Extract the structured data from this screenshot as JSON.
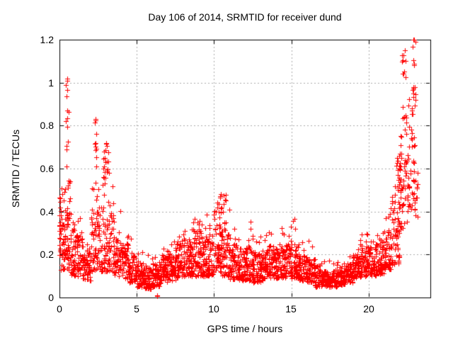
{
  "colors": {
    "marker": "#ff0000",
    "grid": "#aaaaaa",
    "frame": "#000000",
    "background": "#ffffff",
    "text": "#000000"
  },
  "chart_data": {
    "type": "scatter",
    "title": "Day 106 of 2014, SRMTID for receiver dund",
    "xlabel": "GPS time / hours",
    "ylabel": "SRMTID / TECUs",
    "xlim": [
      0,
      24
    ],
    "ylim": [
      0,
      1.2
    ],
    "xticks": [
      "0",
      "5",
      "10",
      "15",
      "20"
    ],
    "xtick_values": [
      0,
      5,
      10,
      15,
      20
    ],
    "yticks": [
      "0",
      "0.2",
      "0.4",
      "0.6",
      "0.8",
      "1",
      "1.2"
    ],
    "ytick_values": [
      0,
      0.2,
      0.4,
      0.6,
      0.8,
      1,
      1.2
    ],
    "grid": true,
    "legend": false,
    "marker": "plus",
    "marker_size_px": 7,
    "series_name": "SRMTID",
    "distribution_bins": [
      [
        0.0,
        0.1,
        0.18,
        0.45,
        18,
        0.5,
        2
      ],
      [
        0.1,
        0.5,
        0.13,
        0.42,
        45,
        0.55,
        6
      ],
      [
        0.5,
        0.75,
        0.12,
        0.4,
        30,
        0.55,
        8
      ],
      [
        0.75,
        1.0,
        0.1,
        0.32,
        28,
        0.4,
        2
      ],
      [
        1.0,
        1.5,
        0.1,
        0.3,
        52,
        0.38,
        3
      ],
      [
        1.5,
        2.0,
        0.08,
        0.22,
        55,
        0.3,
        2
      ],
      [
        2.0,
        2.5,
        0.12,
        0.45,
        50,
        0.55,
        4
      ],
      [
        2.5,
        3.0,
        0.12,
        0.45,
        50,
        0.58,
        5
      ],
      [
        3.0,
        3.5,
        0.12,
        0.42,
        50,
        0.55,
        4
      ],
      [
        3.5,
        4.0,
        0.1,
        0.3,
        50,
        0.42,
        3
      ],
      [
        4.0,
        4.5,
        0.08,
        0.25,
        55,
        0.3,
        2
      ],
      [
        4.5,
        5.0,
        0.07,
        0.2,
        55,
        0.28,
        2
      ],
      [
        5.0,
        5.5,
        0.05,
        0.17,
        55,
        0.22,
        2
      ],
      [
        5.5,
        6.0,
        0.04,
        0.15,
        55,
        0.2,
        2
      ],
      [
        6.0,
        6.5,
        0.05,
        0.16,
        55,
        0.2,
        2
      ],
      [
        6.5,
        7.0,
        0.07,
        0.2,
        55,
        0.26,
        2
      ],
      [
        7.0,
        7.5,
        0.08,
        0.22,
        55,
        0.28,
        2
      ],
      [
        7.5,
        8.0,
        0.09,
        0.25,
        55,
        0.3,
        3
      ],
      [
        8.0,
        8.5,
        0.1,
        0.27,
        55,
        0.33,
        3
      ],
      [
        8.5,
        9.0,
        0.1,
        0.28,
        55,
        0.35,
        4
      ],
      [
        9.0,
        9.5,
        0.1,
        0.28,
        55,
        0.36,
        4
      ],
      [
        9.5,
        10.0,
        0.1,
        0.3,
        55,
        0.4,
        4
      ],
      [
        10.0,
        10.5,
        0.12,
        0.33,
        50,
        0.45,
        5
      ],
      [
        10.5,
        11.0,
        0.1,
        0.32,
        50,
        0.44,
        5
      ],
      [
        11.0,
        11.5,
        0.08,
        0.25,
        55,
        0.32,
        3
      ],
      [
        11.5,
        12.0,
        0.08,
        0.22,
        55,
        0.3,
        3
      ],
      [
        12.0,
        12.5,
        0.08,
        0.24,
        55,
        0.38,
        4
      ],
      [
        12.5,
        13.0,
        0.07,
        0.22,
        55,
        0.32,
        3
      ],
      [
        13.0,
        13.5,
        0.08,
        0.22,
        55,
        0.3,
        3
      ],
      [
        13.5,
        14.0,
        0.09,
        0.24,
        55,
        0.33,
        3
      ],
      [
        14.0,
        14.5,
        0.09,
        0.24,
        55,
        0.34,
        3
      ],
      [
        14.5,
        15.0,
        0.09,
        0.25,
        55,
        0.35,
        4
      ],
      [
        15.0,
        15.5,
        0.09,
        0.25,
        55,
        0.37,
        3
      ],
      [
        15.5,
        16.0,
        0.08,
        0.2,
        55,
        0.3,
        2
      ],
      [
        16.0,
        16.5,
        0.07,
        0.18,
        55,
        0.28,
        2
      ],
      [
        16.5,
        17.0,
        0.05,
        0.15,
        55,
        0.2,
        2
      ],
      [
        17.0,
        17.5,
        0.05,
        0.13,
        55,
        0.17,
        2
      ],
      [
        17.5,
        18.0,
        0.05,
        0.13,
        55,
        0.17,
        2
      ],
      [
        18.0,
        18.5,
        0.06,
        0.15,
        55,
        0.19,
        2
      ],
      [
        18.5,
        19.0,
        0.07,
        0.16,
        55,
        0.2,
        2
      ],
      [
        19.0,
        19.5,
        0.09,
        0.2,
        55,
        0.27,
        3
      ],
      [
        19.5,
        20.0,
        0.1,
        0.24,
        55,
        0.3,
        4
      ],
      [
        20.0,
        20.5,
        0.1,
        0.24,
        55,
        0.3,
        3
      ],
      [
        20.5,
        21.0,
        0.11,
        0.27,
        55,
        0.33,
        3
      ],
      [
        21.0,
        21.5,
        0.13,
        0.32,
        55,
        0.42,
        4
      ],
      [
        21.5,
        22.0,
        0.15,
        0.45,
        50,
        0.6,
        6
      ],
      [
        22.0,
        22.5,
        0.3,
        0.75,
        45,
        0.85,
        5
      ],
      [
        22.5,
        23.0,
        0.4,
        0.8,
        45,
        0.95,
        6
      ],
      [
        23.0,
        23.2,
        0.35,
        0.6,
        10,
        0,
        0
      ]
    ],
    "outlier_clusters": [
      [
        0.42,
        0.6,
        0.6,
        1.03,
        13
      ],
      [
        2.28,
        2.42,
        0.45,
        0.83,
        11
      ],
      [
        2.8,
        3.2,
        0.55,
        0.72,
        20
      ],
      [
        8.6,
        9.2,
        0.28,
        0.38,
        10
      ],
      [
        10.2,
        10.8,
        0.3,
        0.48,
        18
      ],
      [
        21.8,
        22.1,
        0.5,
        0.7,
        12
      ],
      [
        22.15,
        22.45,
        0.78,
        1.15,
        14
      ],
      [
        22.8,
        23.05,
        0.85,
        1.2,
        14
      ],
      [
        6.25,
        6.35,
        0.005,
        0.02,
        2
      ]
    ],
    "notable_points": [
      [
        0.52,
        1.02
      ],
      [
        2.35,
        0.83
      ],
      [
        3.0,
        0.72
      ],
      [
        10.45,
        0.48
      ],
      [
        22.33,
        1.15
      ],
      [
        22.9,
        1.2
      ],
      [
        22.95,
        1.2
      ],
      [
        6.3,
        0.01
      ]
    ]
  }
}
